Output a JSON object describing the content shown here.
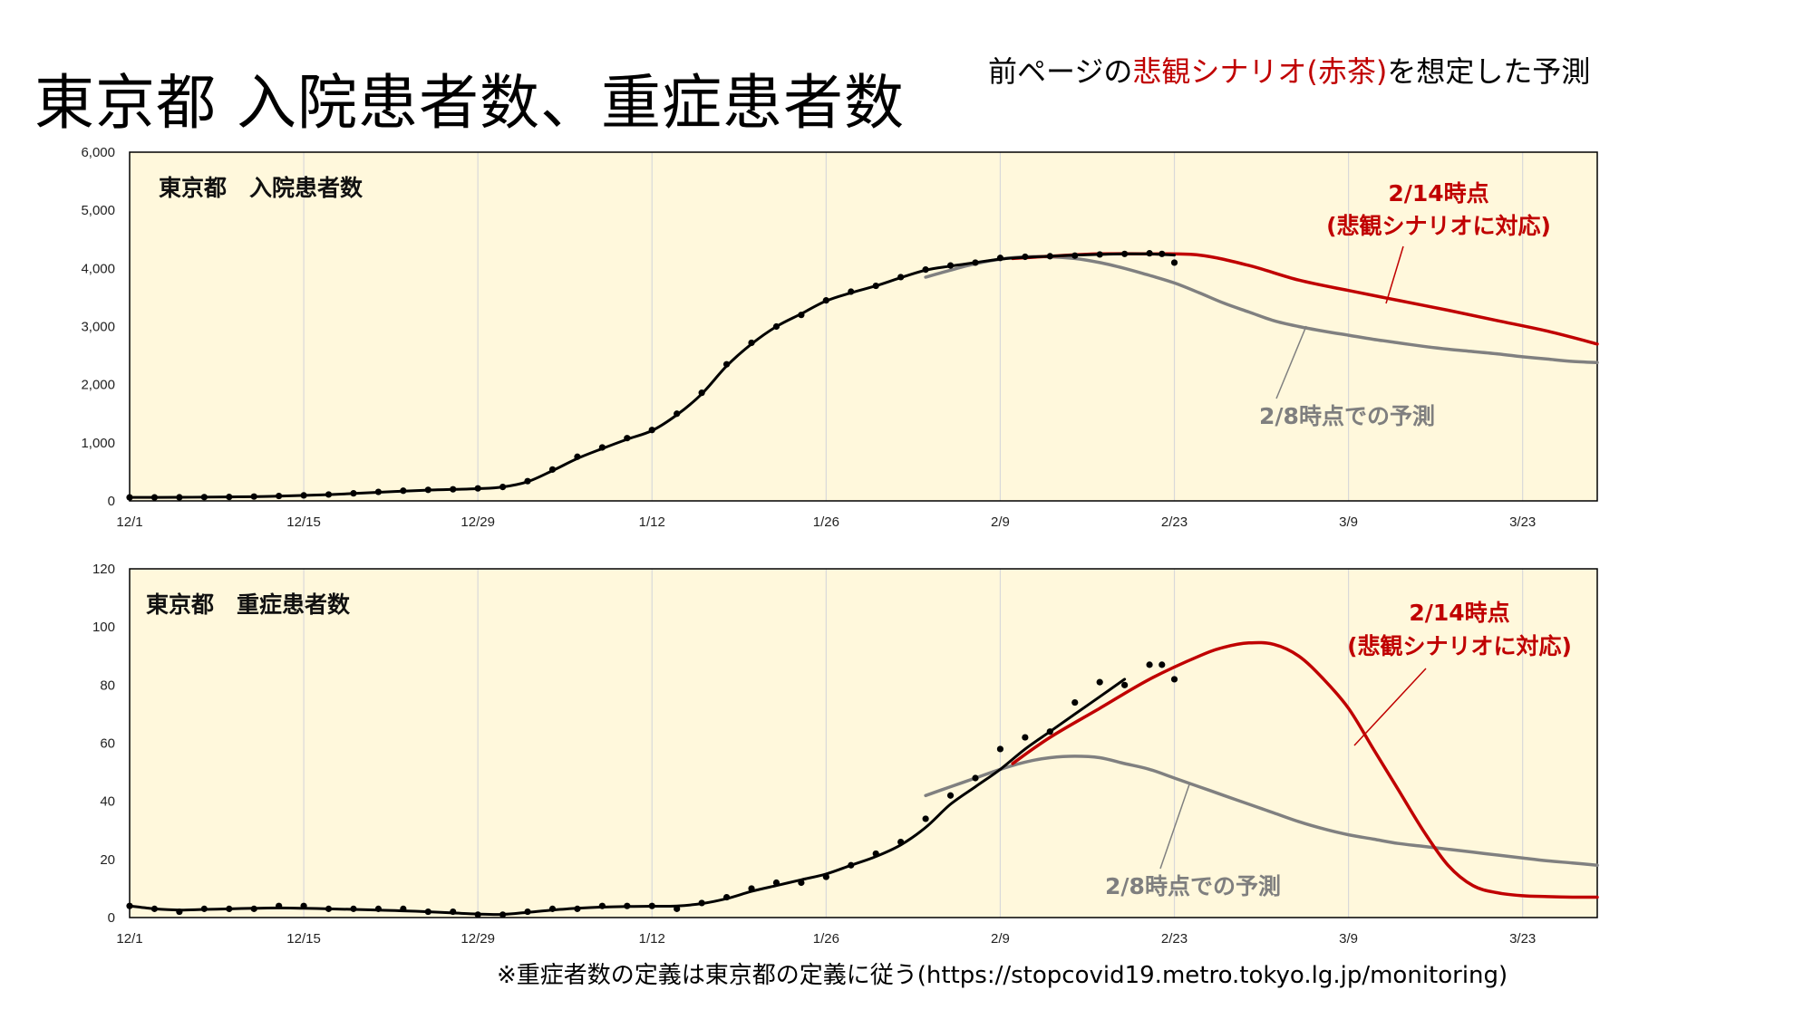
{
  "page": {
    "title": "東京都 入院患者数、重症患者数",
    "subtitle_pre": "前ページの",
    "subtitle_red": "悲観シナリオ(赤茶)",
    "subtitle_post": "を想定した予測",
    "footnote": "※重症者数の定義は東京都の定義に従う(https://stopcovid19.metro.tokyo.lg.jp/monitoring)"
  },
  "colors": {
    "plot_background": "#fff8dc",
    "actual": "#000000",
    "fit": "#000000",
    "forecast_0214": "#c00000",
    "forecast_0208": "#808080",
    "grid": "#d9d9d9"
  },
  "chart_data": [
    {
      "type": "line",
      "panel_label": "東京都　入院患者数",
      "x_tick_labels": [
        "12/1",
        "12/15",
        "12/29",
        "1/12",
        "1/26",
        "2/9",
        "2/23",
        "3/9",
        "3/23"
      ],
      "x_tick_days": [
        0,
        14,
        28,
        42,
        56,
        70,
        84,
        98,
        112
      ],
      "xlim_days": [
        0,
        118
      ],
      "ylim": [
        0,
        6000
      ],
      "y_ticks": [
        0,
        1000,
        2000,
        3000,
        4000,
        5000,
        6000
      ],
      "y_tick_labels": [
        "0",
        "1,000",
        "2,000",
        "3,000",
        "4,000",
        "5,000",
        "6,000"
      ],
      "grid": true,
      "series": [
        {
          "role": "actual-dots",
          "x": [
            0,
            2,
            4,
            6,
            8,
            10,
            12,
            14,
            16,
            18,
            20,
            22,
            24,
            26,
            28,
            30,
            32,
            34,
            36,
            38,
            40,
            42,
            44,
            46,
            48,
            50,
            52,
            54,
            56,
            58,
            60,
            62,
            64,
            66,
            68,
            70,
            72,
            74,
            76,
            78,
            80,
            82,
            83,
            84
          ],
          "y": [
            60,
            60,
            62,
            65,
            68,
            75,
            85,
            95,
            110,
            130,
            155,
            175,
            190,
            200,
            215,
            240,
            340,
            540,
            760,
            920,
            1080,
            1220,
            1500,
            1860,
            2350,
            2720,
            3000,
            3200,
            3450,
            3600,
            3700,
            3850,
            3980,
            4050,
            4100,
            4180,
            4200,
            4210,
            4220,
            4240,
            4250,
            4260,
            4250,
            4100
          ]
        },
        {
          "role": "actual-smooth",
          "x": [
            0,
            4,
            8,
            12,
            16,
            20,
            24,
            28,
            30,
            32,
            34,
            36,
            38,
            40,
            42,
            44,
            46,
            48,
            50,
            52,
            54,
            56,
            58,
            60,
            62,
            64,
            66,
            68,
            70,
            72,
            74,
            76,
            78,
            80,
            82,
            84
          ],
          "y": [
            60,
            62,
            68,
            82,
            108,
            148,
            185,
            210,
            240,
            330,
            520,
            730,
            900,
            1060,
            1210,
            1480,
            1840,
            2320,
            2700,
            3000,
            3220,
            3440,
            3580,
            3700,
            3840,
            3970,
            4040,
            4100,
            4160,
            4190,
            4210,
            4230,
            4240,
            4250,
            4250,
            4230
          ]
        },
        {
          "name": "2/14時点\n(悲観シナリオに対応)",
          "role": "forecast-0214",
          "x": [
            71,
            74,
            78,
            82,
            86,
            90,
            94,
            98,
            102,
            106,
            110,
            114,
            118
          ],
          "y": [
            4170,
            4210,
            4250,
            4250,
            4230,
            4050,
            3800,
            3620,
            3450,
            3280,
            3100,
            2920,
            2700
          ]
        },
        {
          "name": "2/8時点での予測",
          "role": "forecast-0208",
          "x": [
            64,
            66,
            68,
            70,
            72,
            74,
            76,
            78,
            80,
            82,
            84,
            86,
            88,
            90,
            92,
            94,
            96,
            98,
            100,
            102,
            104,
            106,
            108,
            110,
            112,
            114,
            116,
            118
          ],
          "y": [
            3850,
            3970,
            4080,
            4160,
            4200,
            4200,
            4170,
            4100,
            4000,
            3880,
            3750,
            3580,
            3400,
            3250,
            3100,
            3000,
            2920,
            2850,
            2780,
            2720,
            2660,
            2610,
            2570,
            2530,
            2480,
            2440,
            2400,
            2380
          ]
        }
      ],
      "annotations": [
        {
          "text": "2/14時点",
          "style": "red"
        },
        {
          "text": "(悲観シナリオに対応)",
          "style": "red"
        },
        {
          "text": "2/8時点での予測",
          "style": "gray"
        }
      ]
    },
    {
      "type": "line",
      "panel_label": "東京都　重症患者数",
      "x_tick_labels": [
        "12/1",
        "12/15",
        "12/29",
        "1/12",
        "1/26",
        "2/9",
        "2/23",
        "3/9",
        "3/23"
      ],
      "x_tick_days": [
        0,
        14,
        28,
        42,
        56,
        70,
        84,
        98,
        112
      ],
      "xlim_days": [
        0,
        118
      ],
      "ylim": [
        0,
        120
      ],
      "y_ticks": [
        0,
        20,
        40,
        60,
        80,
        100,
        120
      ],
      "y_tick_labels": [
        "0",
        "20",
        "40",
        "60",
        "80",
        "100",
        "120"
      ],
      "grid": true,
      "series": [
        {
          "role": "actual-dots",
          "x": [
            0,
            2,
            4,
            6,
            8,
            10,
            12,
            14,
            16,
            18,
            20,
            22,
            24,
            26,
            28,
            30,
            32,
            34,
            36,
            38,
            40,
            42,
            44,
            46,
            48,
            50,
            52,
            54,
            56,
            58,
            60,
            62,
            64,
            66,
            68,
            70,
            72,
            74,
            76,
            78,
            80,
            82,
            83,
            84
          ],
          "y": [
            4,
            3,
            2,
            3,
            3,
            3,
            4,
            4,
            3,
            3,
            3,
            3,
            2,
            2,
            1,
            1,
            2,
            3,
            3,
            4,
            4,
            4,
            3,
            5,
            7,
            10,
            12,
            12,
            14,
            18,
            22,
            26,
            34,
            42,
            48,
            58,
            62,
            64,
            74,
            81,
            80,
            87,
            87,
            82
          ]
        },
        {
          "role": "actual-smooth",
          "x": [
            0,
            2,
            4,
            6,
            8,
            10,
            12,
            14,
            16,
            18,
            20,
            22,
            24,
            26,
            28,
            30,
            32,
            34,
            36,
            38,
            40,
            42,
            44,
            46,
            48,
            50,
            52,
            54,
            56,
            58,
            60,
            62,
            64,
            66,
            68,
            70,
            72,
            74,
            76,
            78,
            80
          ],
          "y": [
            4,
            3,
            2.6,
            2.8,
            3,
            3.2,
            3.3,
            3.2,
            3,
            2.8,
            2.6,
            2.3,
            2,
            1.6,
            1.2,
            1.1,
            1.8,
            2.6,
            3.2,
            3.6,
            3.8,
            3.9,
            4,
            4.8,
            6.5,
            9,
            11,
            13,
            15,
            18,
            21,
            25,
            31,
            39,
            45,
            51,
            58,
            64,
            70,
            76,
            82
          ]
        },
        {
          "name": "2/14時点\n(悲観シナリオに対応)",
          "role": "forecast-0214",
          "x": [
            71,
            74,
            78,
            82,
            86,
            88,
            90,
            92,
            94,
            96,
            98,
            100,
            102,
            104,
            106,
            108,
            110,
            112,
            114,
            116,
            118
          ],
          "y": [
            53,
            62,
            72,
            82,
            90,
            93,
            94.5,
            94,
            90,
            82,
            72,
            58,
            44,
            30,
            18,
            11,
            8.5,
            7.5,
            7.2,
            7,
            7
          ]
        },
        {
          "name": "2/8時点での予測",
          "role": "forecast-0208",
          "x": [
            64,
            66,
            68,
            70,
            72,
            74,
            76,
            78,
            80,
            82,
            84,
            86,
            88,
            90,
            92,
            94,
            96,
            98,
            100,
            102,
            104,
            106,
            108,
            110,
            112,
            114,
            116,
            118
          ],
          "y": [
            42,
            45,
            48,
            51,
            53.5,
            55,
            55.5,
            55,
            53,
            51,
            48,
            45,
            42,
            39,
            36,
            33,
            30.5,
            28.5,
            27,
            25.5,
            24.5,
            23.5,
            22.5,
            21.5,
            20.5,
            19.5,
            18.8,
            18
          ]
        }
      ],
      "annotations": [
        {
          "text": "2/14時点",
          "style": "red"
        },
        {
          "text": "(悲観シナリオに対応)",
          "style": "red"
        },
        {
          "text": "2/8時点での予測",
          "style": "gray"
        }
      ]
    }
  ]
}
